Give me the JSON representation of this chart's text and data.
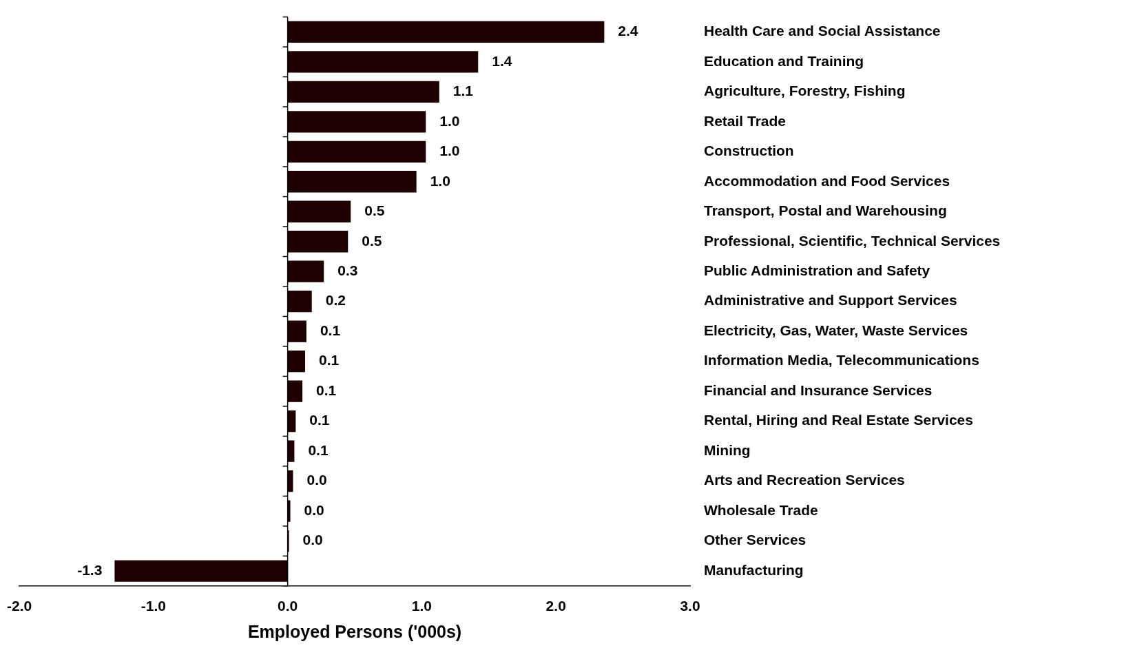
{
  "chart_data": {
    "type": "bar",
    "orientation": "horizontal",
    "categories": [
      "Health Care and Social Assistance",
      "Education and Training",
      "Agriculture, Forestry, Fishing",
      "Retail Trade",
      "Construction",
      "Accommodation and Food Services",
      "Transport, Postal and Warehousing",
      "Professional, Scientific, Technical Services",
      "Public Administration and Safety",
      "Administrative and Support Services",
      "Electricity, Gas, Water, Waste Services",
      "Information Media, Telecommunications",
      "Financial and Insurance Services",
      "Rental, Hiring and Real Estate Services",
      "Mining",
      "Arts and Recreation Services",
      "Wholesale Trade",
      "Other Services",
      "Manufacturing"
    ],
    "values": [
      2.36,
      1.42,
      1.13,
      1.03,
      1.03,
      0.96,
      0.47,
      0.45,
      0.27,
      0.18,
      0.14,
      0.13,
      0.11,
      0.06,
      0.05,
      0.04,
      0.02,
      0.01,
      -1.29
    ],
    "value_labels": [
      "2.4",
      "1.4",
      "1.1",
      "1.0",
      "1.0",
      "1.0",
      "0.5",
      "0.5",
      "0.3",
      "0.2",
      "0.1",
      "0.1",
      "0.1",
      "0.1",
      "0.1",
      "0.0",
      "0.0",
      "0.0",
      "-1.3"
    ],
    "color": "#1f0000",
    "xlabel": "Employed Persons ('000s)",
    "xlim": [
      -2,
      3
    ],
    "xticks": [
      {
        "value": -2,
        "label": "-2.0"
      },
      {
        "value": -1,
        "label": "-1.0"
      },
      {
        "value": 0,
        "label": "0.0"
      },
      {
        "value": 1,
        "label": "1.0"
      },
      {
        "value": 2,
        "label": "2.0"
      },
      {
        "value": 3,
        "label": "3.0"
      }
    ]
  }
}
